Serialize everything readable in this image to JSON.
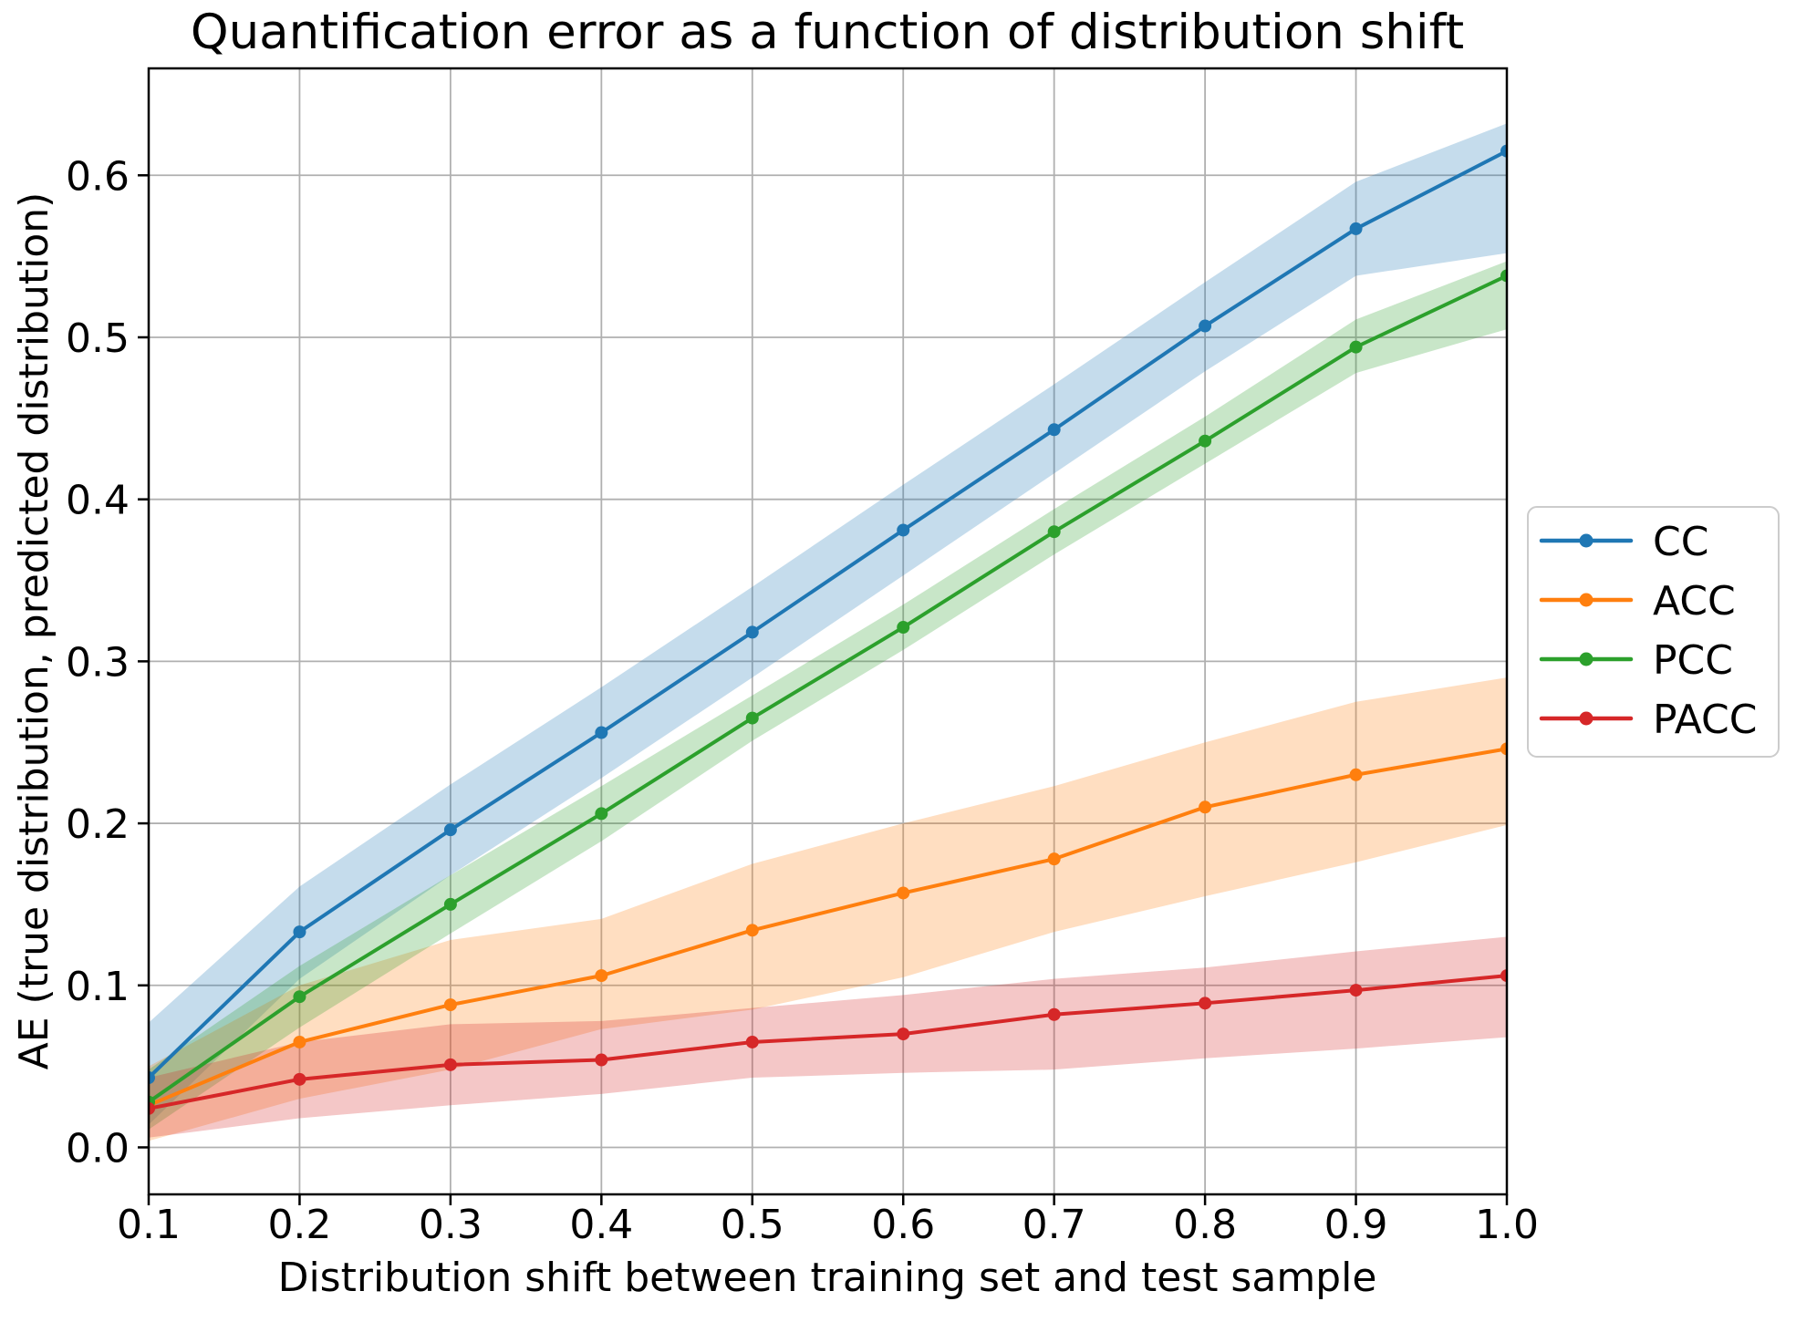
{
  "figure": {
    "background": "#ffffff"
  },
  "chart_data": {
    "type": "line",
    "title": "Quantification error as a function of distribution shift",
    "xlabel": "Distribution shift between training set and test sample",
    "ylabel": "AE (true distribution, predicted distribution)",
    "x": [
      0.1,
      0.2,
      0.3,
      0.4,
      0.5,
      0.6,
      0.7,
      0.8,
      0.9,
      1.0
    ],
    "x_tick_labels": [
      "0.1",
      "0.2",
      "0.3",
      "0.4",
      "0.5",
      "0.6",
      "0.7",
      "0.8",
      "0.9",
      "1.0"
    ],
    "y_ticks": [
      0.0,
      0.1,
      0.2,
      0.3,
      0.4,
      0.5,
      0.6
    ],
    "y_tick_labels": [
      "0.0",
      "0.1",
      "0.2",
      "0.3",
      "0.4",
      "0.5",
      "0.6"
    ],
    "xlim": [
      0.1,
      1.0
    ],
    "ylim": [
      -0.029,
      0.666
    ],
    "grid": true,
    "grid_color": "#b0b0b0",
    "spine_color": "#000000",
    "band_opacity": 0.26,
    "marker": "circle",
    "legend": {
      "position": "outside-right",
      "border_color": "#cccccc",
      "background": "#ffffff",
      "labels": [
        "CC",
        "ACC",
        "PCC",
        "PACC"
      ]
    },
    "series": [
      {
        "name": "CC",
        "color": "#1f77b4",
        "values": [
          0.043,
          0.133,
          0.196,
          0.256,
          0.318,
          0.381,
          0.443,
          0.507,
          0.567,
          0.615
        ],
        "band_lower": [
          0.014,
          0.104,
          0.168,
          0.228,
          0.29,
          0.353,
          0.416,
          0.479,
          0.538,
          0.552
        ],
        "band_upper": [
          0.077,
          0.161,
          0.224,
          0.284,
          0.346,
          0.409,
          0.471,
          0.534,
          0.596,
          0.632
        ]
      },
      {
        "name": "ACC",
        "color": "#ff7f0e",
        "values": [
          0.026,
          0.065,
          0.088,
          0.106,
          0.134,
          0.157,
          0.178,
          0.21,
          0.23,
          0.246
        ],
        "band_lower": [
          0.004,
          0.03,
          0.048,
          0.073,
          0.085,
          0.105,
          0.133,
          0.155,
          0.176,
          0.199
        ],
        "band_upper": [
          0.05,
          0.1,
          0.128,
          0.141,
          0.175,
          0.2,
          0.223,
          0.25,
          0.275,
          0.29
        ]
      },
      {
        "name": "PCC",
        "color": "#2ca02c",
        "values": [
          0.028,
          0.093,
          0.15,
          0.206,
          0.265,
          0.321,
          0.38,
          0.436,
          0.494,
          0.538
        ],
        "band_lower": [
          0.011,
          0.074,
          0.132,
          0.189,
          0.251,
          0.307,
          0.366,
          0.422,
          0.478,
          0.505
        ],
        "band_upper": [
          0.048,
          0.112,
          0.168,
          0.223,
          0.279,
          0.335,
          0.394,
          0.451,
          0.511,
          0.547
        ]
      },
      {
        "name": "PACC",
        "color": "#d62728",
        "values": [
          0.024,
          0.042,
          0.051,
          0.054,
          0.065,
          0.07,
          0.082,
          0.089,
          0.097,
          0.106
        ],
        "band_lower": [
          0.006,
          0.018,
          0.026,
          0.033,
          0.043,
          0.046,
          0.048,
          0.055,
          0.061,
          0.068
        ],
        "band_upper": [
          0.043,
          0.065,
          0.076,
          0.078,
          0.086,
          0.094,
          0.104,
          0.111,
          0.121,
          0.13
        ]
      }
    ]
  }
}
